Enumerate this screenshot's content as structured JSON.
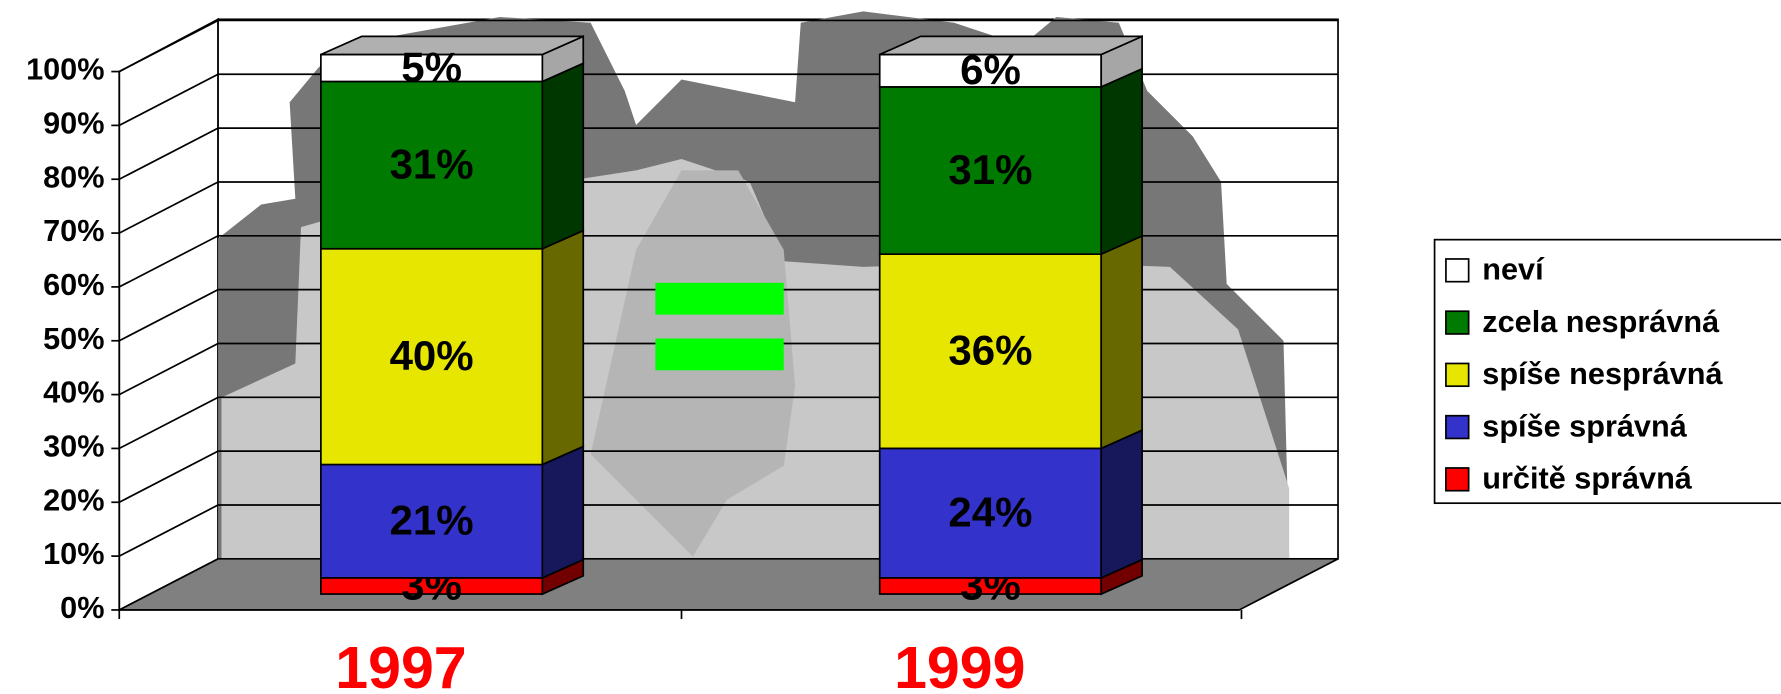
{
  "chart_data": {
    "type": "stacked-bar-3d",
    "categories": [
      "1997",
      "1999"
    ],
    "series": [
      {
        "name": "určitě správná",
        "color": "#ff0000",
        "values": [
          3,
          3
        ],
        "value_labels": [
          "3%",
          "3%"
        ]
      },
      {
        "name": "spíše správná",
        "color": "#3333cc",
        "values": [
          21,
          24
        ],
        "value_labels": [
          "21%",
          "24%"
        ]
      },
      {
        "name": "spíše nesprávná",
        "color": "#e6e600",
        "values": [
          40,
          36
        ],
        "value_labels": [
          "40%",
          "36%"
        ]
      },
      {
        "name": "zcela nesprávná",
        "color": "#007a00",
        "values": [
          31,
          31
        ],
        "value_labels": [
          "31%",
          "31%"
        ]
      },
      {
        "name": "neví",
        "color": "#ffffff",
        "values": [
          5,
          6
        ],
        "value_labels": [
          "5%",
          "6%"
        ]
      }
    ],
    "ylim": [
      0,
      100
    ],
    "yticks": [
      {
        "value": 0,
        "label": "0%"
      },
      {
        "value": 10,
        "label": "10%"
      },
      {
        "value": 20,
        "label": "20%"
      },
      {
        "value": 30,
        "label": "30%"
      },
      {
        "value": 40,
        "label": "40%"
      },
      {
        "value": 50,
        "label": "50%"
      },
      {
        "value": 60,
        "label": "60%"
      },
      {
        "value": 70,
        "label": "70%"
      },
      {
        "value": 80,
        "label": "80%"
      },
      {
        "value": 90,
        "label": "90%"
      },
      {
        "value": 100,
        "label": "100%"
      }
    ],
    "grid": true,
    "legend": "right"
  }
}
